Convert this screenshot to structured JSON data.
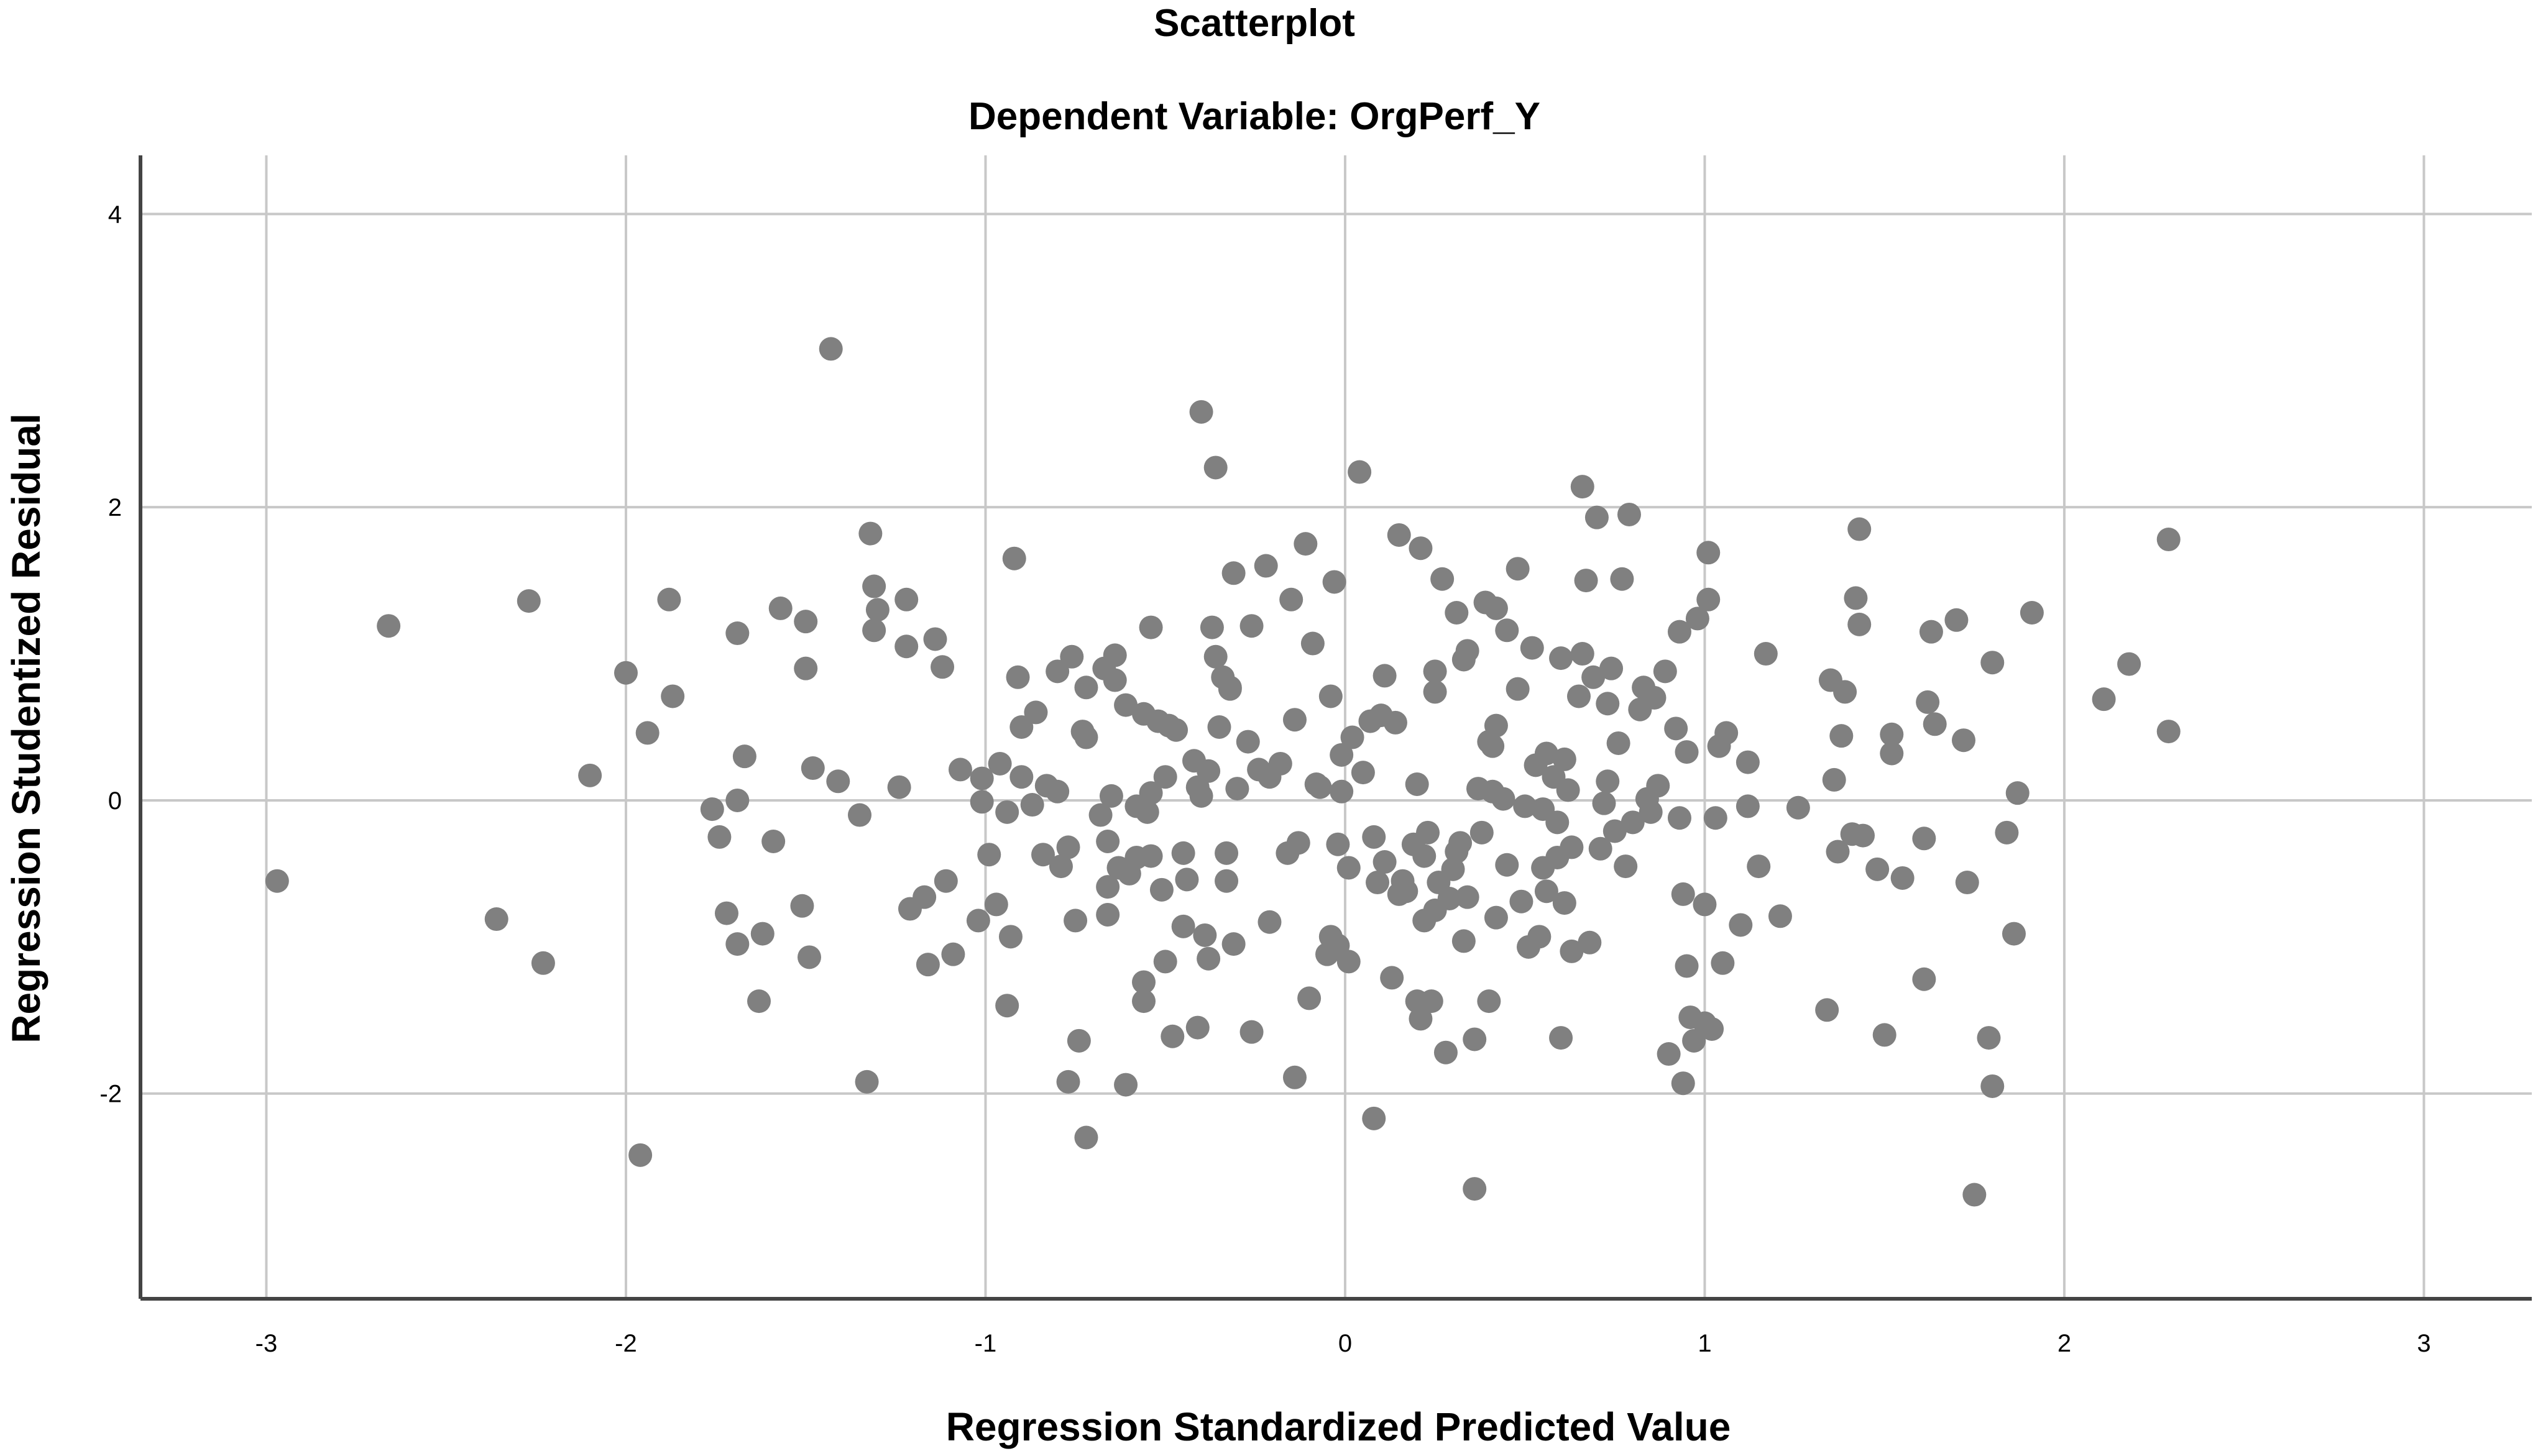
{
  "chart_data": {
    "type": "scatter",
    "title": "Scatterplot",
    "subtitle": "Dependent Variable: OrgPerf_Y",
    "xlabel": "Regression Standardized Predicted Value",
    "ylabel": "Regression Studentized Residual",
    "xlim": [
      -3.35,
      3.3
    ],
    "ylim": [
      -3.4,
      4.4
    ],
    "xticks": [
      -3,
      -2,
      -1,
      0,
      1,
      2,
      3
    ],
    "yticks": [
      -2,
      0,
      2,
      4
    ],
    "grid": true,
    "colors": {
      "point": "#808080",
      "grid": "#c8c8c8",
      "axis": "#444444"
    },
    "points": [
      [
        -2.97,
        -0.55
      ],
      [
        -2.66,
        1.19
      ],
      [
        -2.36,
        -0.81
      ],
      [
        -2.27,
        1.36
      ],
      [
        -2.23,
        -1.11
      ],
      [
        -2.1,
        0.17
      ],
      [
        -2.0,
        0.87
      ],
      [
        -1.96,
        -2.42
      ],
      [
        -1.94,
        0.46
      ],
      [
        -1.88,
        1.37
      ],
      [
        -1.87,
        0.71
      ],
      [
        -1.76,
        -0.06
      ],
      [
        -1.74,
        -0.25
      ],
      [
        -1.72,
        -0.77
      ],
      [
        -1.69,
        0.0
      ],
      [
        -1.69,
        -0.98
      ],
      [
        -1.69,
        1.14
      ],
      [
        -1.67,
        0.3
      ],
      [
        -1.63,
        -1.37
      ],
      [
        -1.62,
        -0.91
      ],
      [
        -1.59,
        -0.28
      ],
      [
        -1.57,
        1.31
      ],
      [
        -1.51,
        -0.72
      ],
      [
        -1.5,
        0.9
      ],
      [
        -1.5,
        1.22
      ],
      [
        -1.49,
        -1.07
      ],
      [
        -1.48,
        0.22
      ],
      [
        -1.43,
        3.08
      ],
      [
        -1.41,
        0.13
      ],
      [
        -1.35,
        -0.1
      ],
      [
        -1.33,
        -1.92
      ],
      [
        -1.32,
        1.82
      ],
      [
        -1.31,
        1.16
      ],
      [
        -1.31,
        1.46
      ],
      [
        -1.3,
        1.3
      ],
      [
        -1.24,
        0.09
      ],
      [
        -1.22,
        1.37
      ],
      [
        -1.22,
        1.05
      ],
      [
        -1.21,
        -0.74
      ],
      [
        -1.17,
        -0.66
      ],
      [
        -1.16,
        -1.12
      ],
      [
        -1.14,
        1.1
      ],
      [
        -1.12,
        0.91
      ],
      [
        -1.11,
        -0.55
      ],
      [
        -1.09,
        -1.05
      ],
      [
        -1.07,
        0.21
      ],
      [
        -1.02,
        -0.82
      ],
      [
        -1.01,
        0.15
      ],
      [
        -1.01,
        -0.01
      ],
      [
        -0.99,
        -0.37
      ],
      [
        -0.97,
        -0.71
      ],
      [
        -0.96,
        0.25
      ],
      [
        -0.94,
        -0.08
      ],
      [
        -0.94,
        -1.4
      ],
      [
        -0.93,
        -0.93
      ],
      [
        -0.92,
        1.65
      ],
      [
        -0.91,
        0.84
      ],
      [
        -0.9,
        0.5
      ],
      [
        -0.9,
        0.16
      ],
      [
        -0.87,
        -0.03
      ],
      [
        -0.86,
        0.6
      ],
      [
        -0.84,
        -0.37
      ],
      [
        -0.83,
        0.1
      ],
      [
        -0.8,
        0.06
      ],
      [
        -0.8,
        0.88
      ],
      [
        -0.79,
        -0.45
      ],
      [
        -0.77,
        -1.92
      ],
      [
        -0.77,
        -0.32
      ],
      [
        -0.76,
        0.98
      ],
      [
        -0.75,
        -0.82
      ],
      [
        -0.74,
        -1.64
      ],
      [
        -0.73,
        0.47
      ],
      [
        -0.72,
        -2.3
      ],
      [
        -0.72,
        0.77
      ],
      [
        -0.72,
        0.43
      ],
      [
        -0.68,
        -0.1
      ],
      [
        -0.67,
        0.9
      ],
      [
        -0.66,
        -0.78
      ],
      [
        -0.66,
        -0.28
      ],
      [
        -0.66,
        -0.59
      ],
      [
        -0.65,
        0.03
      ],
      [
        -0.64,
        0.82
      ],
      [
        -0.64,
        0.99
      ],
      [
        -0.63,
        -0.46
      ],
      [
        -0.61,
        -1.94
      ],
      [
        -0.61,
        0.65
      ],
      [
        -0.6,
        -0.5
      ],
      [
        -0.58,
        -0.04
      ],
      [
        -0.58,
        -0.39
      ],
      [
        -0.56,
        0.59
      ],
      [
        -0.56,
        -1.24
      ],
      [
        -0.56,
        -1.37
      ],
      [
        -0.55,
        -0.08
      ],
      [
        -0.54,
        0.05
      ],
      [
        -0.54,
        -0.38
      ],
      [
        -0.54,
        1.18
      ],
      [
        -0.52,
        0.54
      ],
      [
        -0.51,
        -0.61
      ],
      [
        -0.5,
        0.16
      ],
      [
        -0.5,
        -1.1
      ],
      [
        -0.49,
        0.51
      ],
      [
        -0.48,
        -1.61
      ],
      [
        -0.47,
        0.48
      ],
      [
        -0.45,
        -0.36
      ],
      [
        -0.45,
        -0.86
      ],
      [
        -0.44,
        -0.54
      ],
      [
        -0.42,
        0.27
      ],
      [
        -0.41,
        0.09
      ],
      [
        -0.41,
        -1.55
      ],
      [
        -0.4,
        2.65
      ],
      [
        -0.4,
        0.03
      ],
      [
        -0.39,
        -0.92
      ],
      [
        -0.38,
        0.2
      ],
      [
        -0.38,
        -1.08
      ],
      [
        -0.37,
        1.18
      ],
      [
        -0.36,
        2.27
      ],
      [
        -0.36,
        0.98
      ],
      [
        -0.35,
        0.5
      ],
      [
        -0.34,
        0.84
      ],
      [
        -0.33,
        -0.36
      ],
      [
        -0.33,
        -0.55
      ],
      [
        -0.32,
        0.77
      ],
      [
        -0.32,
        0.76
      ],
      [
        -0.31,
        -0.98
      ],
      [
        -0.31,
        1.55
      ],
      [
        -0.3,
        0.08
      ],
      [
        -0.27,
        0.4
      ],
      [
        -0.26,
        1.19
      ],
      [
        -0.26,
        -1.58
      ],
      [
        -0.24,
        0.21
      ],
      [
        -0.22,
        1.6
      ],
      [
        -0.21,
        0.16
      ],
      [
        -0.21,
        -0.83
      ],
      [
        -0.18,
        0.25
      ],
      [
        -0.16,
        -0.36
      ],
      [
        -0.15,
        1.37
      ],
      [
        -0.14,
        0.55
      ],
      [
        -0.14,
        -1.89
      ],
      [
        -0.13,
        -0.29
      ],
      [
        -0.11,
        1.75
      ],
      [
        -0.1,
        -1.35
      ],
      [
        -0.09,
        1.07
      ],
      [
        -0.08,
        0.11
      ],
      [
        -0.07,
        0.09
      ],
      [
        -0.05,
        -1.05
      ],
      [
        -0.04,
        0.71
      ],
      [
        -0.04,
        -0.93
      ],
      [
        -0.03,
        1.49
      ],
      [
        -0.02,
        -0.99
      ],
      [
        -0.02,
        -0.3
      ],
      [
        -0.01,
        0.31
      ],
      [
        -0.01,
        0.06
      ],
      [
        0.01,
        -0.46
      ],
      [
        0.01,
        -1.1
      ],
      [
        0.02,
        0.43
      ],
      [
        0.04,
        2.24
      ],
      [
        0.05,
        0.19
      ],
      [
        0.07,
        0.54
      ],
      [
        0.08,
        -0.25
      ],
      [
        0.08,
        -2.17
      ],
      [
        0.09,
        -0.56
      ],
      [
        0.1,
        0.58
      ],
      [
        0.11,
        0.85
      ],
      [
        0.11,
        -0.42
      ],
      [
        0.13,
        -1.21
      ],
      [
        0.14,
        0.53
      ],
      [
        0.15,
        -0.64
      ],
      [
        0.15,
        1.81
      ],
      [
        0.16,
        -0.55
      ],
      [
        0.17,
        -0.62
      ],
      [
        0.19,
        -0.3
      ],
      [
        0.2,
        0.11
      ],
      [
        0.2,
        -1.37
      ],
      [
        0.21,
        1.72
      ],
      [
        0.21,
        -1.49
      ],
      [
        0.22,
        -0.82
      ],
      [
        0.22,
        -0.38
      ],
      [
        0.23,
        -0.22
      ],
      [
        0.24,
        -1.37
      ],
      [
        0.25,
        0.88
      ],
      [
        0.25,
        -0.75
      ],
      [
        0.25,
        0.74
      ],
      [
        0.26,
        -0.56
      ],
      [
        0.27,
        1.51
      ],
      [
        0.28,
        -1.72
      ],
      [
        0.29,
        -0.67
      ],
      [
        0.3,
        -0.47
      ],
      [
        0.31,
        -0.35
      ],
      [
        0.31,
        1.28
      ],
      [
        0.32,
        -0.29
      ],
      [
        0.33,
        -0.96
      ],
      [
        0.33,
        0.96
      ],
      [
        0.34,
        1.02
      ],
      [
        0.34,
        -0.66
      ],
      [
        0.36,
        -2.65
      ],
      [
        0.36,
        -1.63
      ],
      [
        0.37,
        0.08
      ],
      [
        0.38,
        -0.22
      ],
      [
        0.39,
        1.35
      ],
      [
        0.4,
        -1.37
      ],
      [
        0.4,
        0.4
      ],
      [
        0.41,
        0.06
      ],
      [
        0.41,
        0.37
      ],
      [
        0.42,
        1.31
      ],
      [
        0.42,
        0.51
      ],
      [
        0.42,
        -0.8
      ],
      [
        0.44,
        0.01
      ],
      [
        0.45,
        1.16
      ],
      [
        0.45,
        -0.44
      ],
      [
        0.48,
        0.76
      ],
      [
        0.48,
        1.58
      ],
      [
        0.49,
        -0.69
      ],
      [
        0.5,
        -0.04
      ],
      [
        0.51,
        -1.0
      ],
      [
        0.52,
        1.04
      ],
      [
        0.53,
        0.24
      ],
      [
        0.54,
        -0.93
      ],
      [
        0.55,
        -0.46
      ],
      [
        0.55,
        -0.06
      ],
      [
        0.56,
        0.32
      ],
      [
        0.56,
        -0.62
      ],
      [
        0.58,
        0.16
      ],
      [
        0.59,
        -0.15
      ],
      [
        0.59,
        -0.39
      ],
      [
        0.6,
        0.97
      ],
      [
        0.6,
        -1.62
      ],
      [
        0.61,
        -0.7
      ],
      [
        0.61,
        0.28
      ],
      [
        0.62,
        0.07
      ],
      [
        0.63,
        -0.32
      ],
      [
        0.63,
        -1.03
      ],
      [
        0.65,
        0.71
      ],
      [
        0.66,
        1.0
      ],
      [
        0.66,
        2.14
      ],
      [
        0.67,
        1.5
      ],
      [
        0.68,
        -0.97
      ],
      [
        0.69,
        0.84
      ],
      [
        0.7,
        1.93
      ],
      [
        0.71,
        -0.33
      ],
      [
        0.72,
        -0.02
      ],
      [
        0.73,
        0.66
      ],
      [
        0.73,
        0.13
      ],
      [
        0.74,
        0.9
      ],
      [
        0.75,
        -0.21
      ],
      [
        0.76,
        0.39
      ],
      [
        0.77,
        1.51
      ],
      [
        0.78,
        -0.45
      ],
      [
        0.79,
        1.95
      ],
      [
        0.8,
        -0.15
      ],
      [
        0.82,
        0.62
      ],
      [
        0.83,
        0.77
      ],
      [
        0.84,
        0.01
      ],
      [
        0.85,
        -0.08
      ],
      [
        0.86,
        0.7
      ],
      [
        0.87,
        0.1
      ],
      [
        0.89,
        0.88
      ],
      [
        0.9,
        -1.73
      ],
      [
        0.92,
        0.49
      ],
      [
        0.93,
        -0.12
      ],
      [
        0.93,
        1.15
      ],
      [
        0.94,
        -1.93
      ],
      [
        0.94,
        -0.64
      ],
      [
        0.95,
        0.33
      ],
      [
        0.95,
        -1.13
      ],
      [
        0.96,
        -1.48
      ],
      [
        0.97,
        -1.64
      ],
      [
        0.98,
        1.24
      ],
      [
        1.0,
        -0.71
      ],
      [
        1.0,
        -1.52
      ],
      [
        1.01,
        1.37
      ],
      [
        1.01,
        1.69
      ],
      [
        1.02,
        -1.56
      ],
      [
        1.03,
        -0.12
      ],
      [
        1.04,
        0.37
      ],
      [
        1.05,
        -1.11
      ],
      [
        1.06,
        0.46
      ],
      [
        1.1,
        -0.85
      ],
      [
        1.12,
        -0.04
      ],
      [
        1.12,
        0.26
      ],
      [
        1.15,
        -0.45
      ],
      [
        1.17,
        1.0
      ],
      [
        1.21,
        -0.79
      ],
      [
        1.26,
        -0.05
      ],
      [
        1.34,
        -1.43
      ],
      [
        1.35,
        0.82
      ],
      [
        1.36,
        0.14
      ],
      [
        1.37,
        -0.35
      ],
      [
        1.38,
        0.44
      ],
      [
        1.39,
        0.74
      ],
      [
        1.41,
        -0.23
      ],
      [
        1.42,
        1.38
      ],
      [
        1.43,
        1.85
      ],
      [
        1.43,
        1.2
      ],
      [
        1.44,
        -0.24
      ],
      [
        1.48,
        -0.47
      ],
      [
        1.5,
        -1.6
      ],
      [
        1.52,
        0.45
      ],
      [
        1.52,
        0.32
      ],
      [
        1.55,
        -0.53
      ],
      [
        1.61,
        -1.22
      ],
      [
        1.61,
        -0.26
      ],
      [
        1.62,
        0.67
      ],
      [
        1.63,
        1.15
      ],
      [
        1.64,
        0.52
      ],
      [
        1.7,
        1.23
      ],
      [
        1.72,
        0.41
      ],
      [
        1.73,
        -0.56
      ],
      [
        1.75,
        -2.69
      ],
      [
        1.79,
        -1.62
      ],
      [
        1.8,
        -1.95
      ],
      [
        1.8,
        0.94
      ],
      [
        1.84,
        -0.22
      ],
      [
        1.86,
        -0.91
      ],
      [
        1.87,
        0.05
      ],
      [
        1.91,
        1.28
      ],
      [
        2.11,
        0.69
      ],
      [
        2.18,
        0.93
      ],
      [
        2.29,
        1.78
      ],
      [
        2.29,
        0.47
      ]
    ]
  }
}
